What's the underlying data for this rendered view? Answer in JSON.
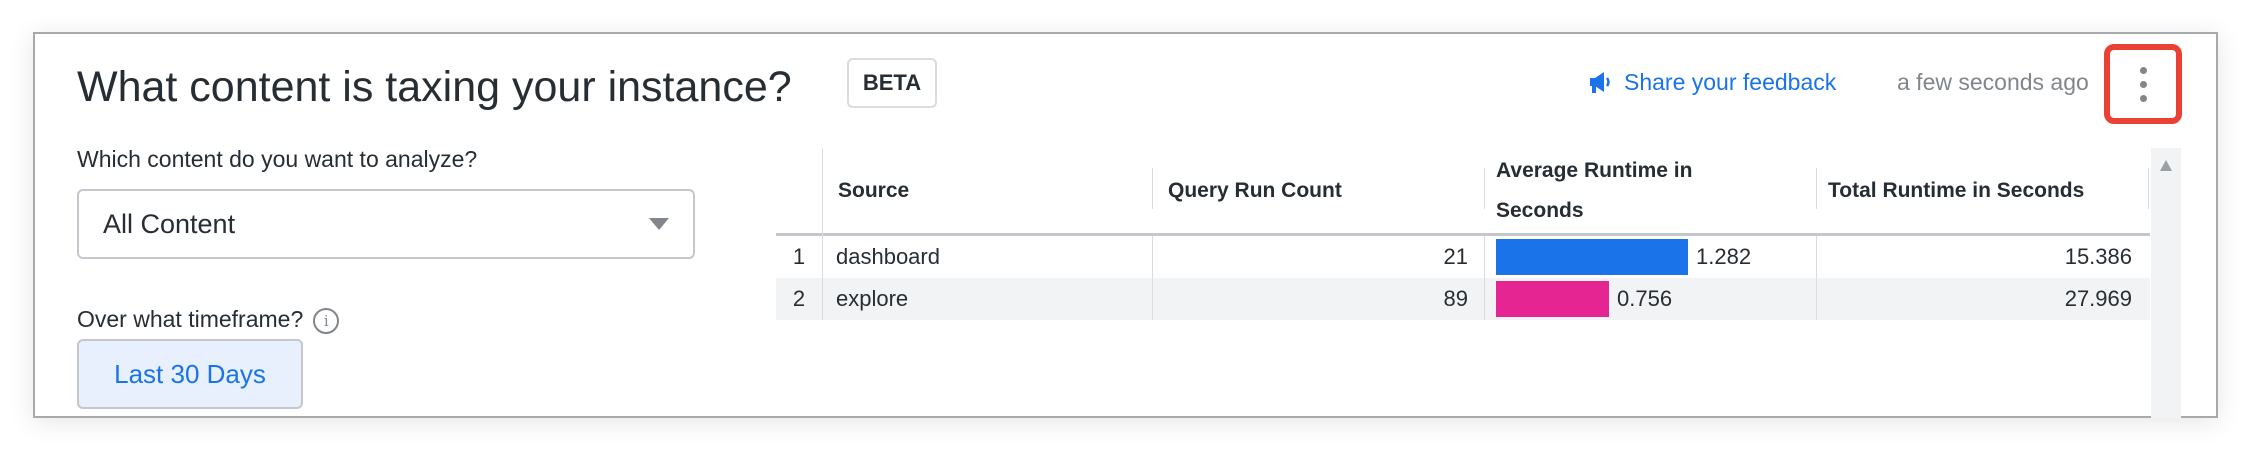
{
  "header": {
    "title": "What content is taxing your instance?",
    "badge": "BETA",
    "feedback_label": "Share your feedback",
    "feedback_icon": "megaphone-icon",
    "timestamp": "a few seconds ago",
    "menu_icon": "kebab-menu-icon",
    "highlight_color": "#e94235"
  },
  "filters": {
    "content_label": "Which content do you want to analyze?",
    "content_value": "All Content",
    "timeframe_label": "Over what timeframe?",
    "timeframe_value": "Last 30 Days"
  },
  "table": {
    "columns": [
      "Source",
      "Query Run Count",
      "Average Runtime in Seconds",
      "Total Runtime in Seconds"
    ],
    "avg_header_lines": [
      "Average Runtime in",
      "Seconds"
    ],
    "rows": [
      {
        "index": "1",
        "source": "dashboard",
        "count": "21",
        "avg": "1.282",
        "avg_value": 1.282,
        "total": "15.386",
        "bar_color": "#1a73e8"
      },
      {
        "index": "2",
        "source": "explore",
        "count": "89",
        "avg": "0.756",
        "avg_value": 0.756,
        "total": "27.969",
        "bar_color": "#e52592"
      }
    ]
  }
}
